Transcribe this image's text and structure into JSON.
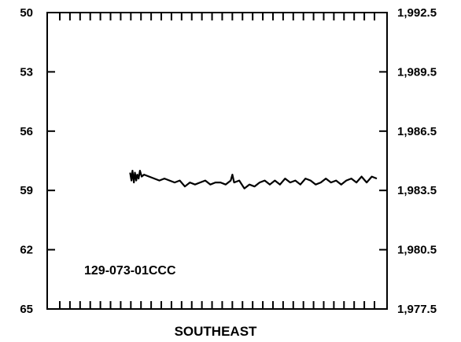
{
  "chart_data": {
    "type": "line",
    "title": "",
    "xlabel": "SOUTHEAST",
    "ylabel": "",
    "annotation": "129-073-01CCC",
    "left_axis": {
      "ylim": [
        50,
        65
      ],
      "inverted": true,
      "ticks": [
        "50",
        "53",
        "56",
        "59",
        "62",
        "65"
      ]
    },
    "right_axis": {
      "ylim": [
        1992.5,
        1977.5
      ],
      "ticks": [
        "1,992.5",
        "1,989.5",
        "1,986.5",
        "1,983.5",
        "1,980.5",
        "1,977.5"
      ]
    },
    "top_tick_count": 32,
    "bottom_tick_count": 32,
    "x_range": [
      0,
      100
    ],
    "grid": false,
    "series": [
      {
        "color": "#000000",
        "x": [
          24.4,
          24.8,
          25.1,
          25.5,
          25.8,
          26.2,
          26.5,
          26.9,
          27.3,
          27.8,
          28.5,
          30,
          31.5,
          33,
          34.5,
          36,
          37.5,
          39,
          40.5,
          42,
          43.5,
          45,
          46.5,
          48,
          49.5,
          51,
          52.5,
          54,
          54.5,
          55,
          56.5,
          58,
          59.5,
          61,
          62.5,
          64,
          65.5,
          67,
          68.5,
          70,
          71.5,
          73,
          74.5,
          76,
          77.5,
          79,
          80.5,
          82,
          83.5,
          85,
          86.5,
          88,
          89.5,
          91,
          92.5,
          94,
          95.5,
          97
        ],
        "values": [
          58.1,
          58.5,
          58.0,
          58.6,
          58.1,
          58.5,
          58.2,
          58.4,
          58.0,
          58.3,
          58.2,
          58.3,
          58.4,
          58.5,
          58.4,
          58.5,
          58.6,
          58.5,
          58.8,
          58.6,
          58.7,
          58.6,
          58.5,
          58.7,
          58.6,
          58.6,
          58.7,
          58.5,
          58.2,
          58.6,
          58.5,
          58.9,
          58.7,
          58.8,
          58.6,
          58.5,
          58.7,
          58.5,
          58.7,
          58.4,
          58.6,
          58.5,
          58.7,
          58.4,
          58.5,
          58.7,
          58.6,
          58.4,
          58.6,
          58.5,
          58.7,
          58.5,
          58.4,
          58.6,
          58.3,
          58.6,
          58.3,
          58.4
        ]
      }
    ]
  }
}
